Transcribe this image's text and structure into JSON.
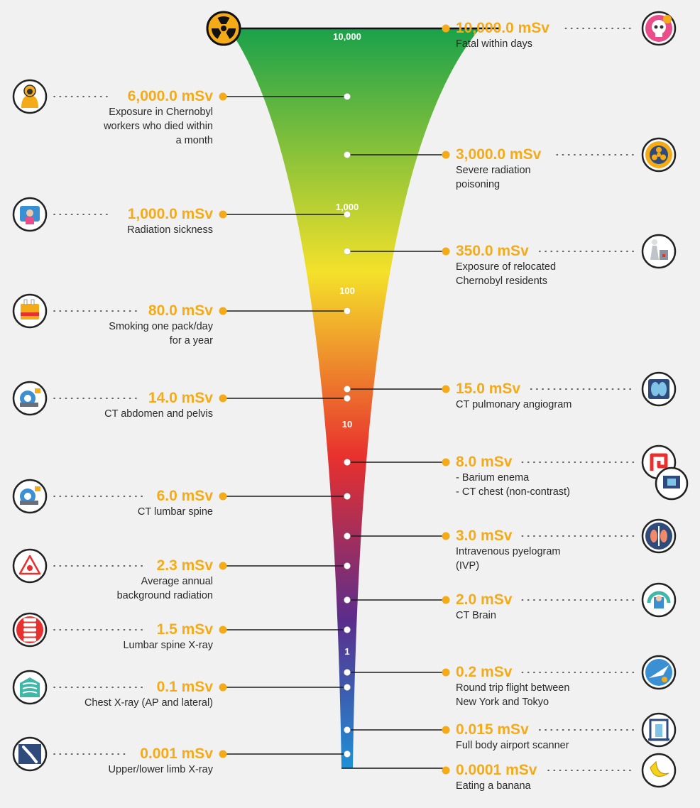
{
  "colors": {
    "accent": "#f4ab17",
    "funnel_top": "#1aa14a",
    "funnel_yellow": "#f4e12a",
    "funnel_red": "#e8302e",
    "funnel_purple": "#5a2d8c",
    "funnel_bottom": "#1e90d6"
  },
  "scale_labels": [
    "10,000",
    "1,000",
    "100",
    "10",
    "1"
  ],
  "entries": [
    {
      "side": "left",
      "value": "6,000.0 mSv",
      "desc": [
        "Exposure in Chernobyl",
        "workers who died within",
        "a month"
      ],
      "icon": "hazmat-worker-icon"
    },
    {
      "side": "left",
      "value": "1,000.0 mSv",
      "desc": [
        "Radiation sickness"
      ],
      "icon": "sick-patient-icon"
    },
    {
      "side": "left",
      "value": "80.0 mSv",
      "desc": [
        "Smoking one pack/day",
        "for a year"
      ],
      "icon": "cigarette-pack-icon"
    },
    {
      "side": "left",
      "value": "14.0 mSv",
      "desc": [
        "CT abdomen and pelvis"
      ],
      "icon": "ct-scanner-icon"
    },
    {
      "side": "left",
      "value": "6.0 mSv",
      "desc": [
        "CT lumbar spine"
      ],
      "icon": "ct-machine-icon"
    },
    {
      "side": "left",
      "value": "2.3 mSv",
      "desc": [
        "Average annual",
        "background radiation"
      ],
      "icon": "radiation-warning-icon"
    },
    {
      "side": "left",
      "value": "1.5 mSv",
      "desc": [
        "Lumbar spine X-ray"
      ],
      "icon": "spine-icon"
    },
    {
      "side": "left",
      "value": "0.1 mSv",
      "desc": [
        "Chest X-ray (AP and lateral)"
      ],
      "icon": "chest-xray-icon"
    },
    {
      "side": "left",
      "value": "0.001 mSv",
      "desc": [
        "Upper/lower limb X-ray"
      ],
      "icon": "limb-xray-icon"
    },
    {
      "side": "right",
      "value": "10,000.0 mSv",
      "desc": [
        "Fatal within days"
      ],
      "icon": "skull-icon"
    },
    {
      "side": "right",
      "value": "3,000.0 mSv",
      "desc": [
        "Severe radiation",
        "poisoning"
      ],
      "icon": "radiation-symbol-icon"
    },
    {
      "side": "right",
      "value": "350.0 mSv",
      "desc": [
        "Exposure of relocated",
        "Chernobyl residents"
      ],
      "icon": "nuclear-plant-icon"
    },
    {
      "side": "right",
      "value": "15.0 mSv",
      "desc": [
        "CT pulmonary angiogram"
      ],
      "icon": "lungs-scan-icon"
    },
    {
      "side": "right",
      "value": "8.0 mSv",
      "desc": [
        "- Barium enema",
        "- CT chest (non-contrast)"
      ],
      "icon": "intestine-icon"
    },
    {
      "side": "right",
      "value": "3.0 mSv",
      "desc": [
        "Intravenous pyelogram",
        "(IVP)"
      ],
      "icon": "kidneys-icon"
    },
    {
      "side": "right",
      "value": "2.0 mSv",
      "desc": [
        "CT Brain"
      ],
      "icon": "brain-ct-icon"
    },
    {
      "side": "right",
      "value": "0.2 mSv",
      "desc": [
        "Round trip flight between",
        "New York and Tokyo"
      ],
      "icon": "airplane-globe-icon"
    },
    {
      "side": "right",
      "value": "0.015 mSv",
      "desc": [
        "Full body airport scanner"
      ],
      "icon": "airport-scanner-icon"
    },
    {
      "side": "right",
      "value": "0.0001 mSv",
      "desc": [
        "Eating a banana"
      ],
      "icon": "banana-icon"
    }
  ]
}
